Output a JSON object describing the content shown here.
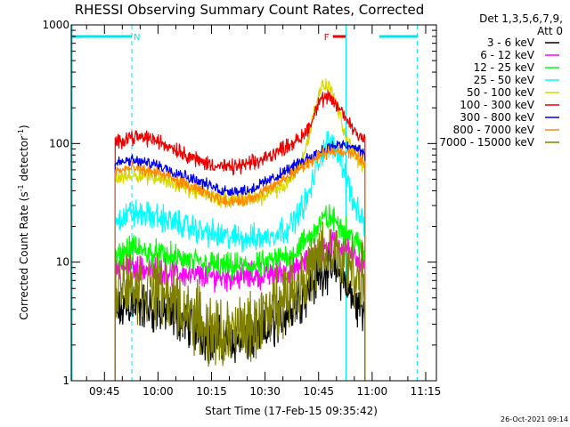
{
  "chart_data": {
    "type": "line",
    "title": "RHESSI Observing Summary Count Rates, Corrected",
    "xlabel": "Start Time (17-Feb-15 09:35:42)",
    "ylabel_main": "Corrected Count Rate (s",
    "ylabel_sup1": "-1",
    "ylabel_mid": " detector",
    "ylabel_sup2": "-1",
    "ylabel_end": ")",
    "y_scale": "log",
    "ylim": [
      1,
      1000
    ],
    "xlim": [
      "09:35:42",
      "11:18:00"
    ],
    "x_ticks": [
      "09:45",
      "10:00",
      "10:15",
      "10:30",
      "10:45",
      "11:00",
      "11:15"
    ],
    "y_ticks": [
      {
        "value": 1,
        "label": "1"
      },
      {
        "value": 10,
        "label": "10"
      },
      {
        "value": 100,
        "label": "100"
      },
      {
        "value": 1000,
        "label": "1000"
      }
    ],
    "legend_header": [
      "Det 1,3,5,6,7,9,",
      "Att 0"
    ],
    "legend_position": "right",
    "timestamp": "26-Oct-2021 09:14",
    "flags": [
      {
        "label": "N",
        "color": "#00e5ee",
        "segments": [
          [
            "09:35:42",
            "09:52:40"
          ],
          [
            "11:02:00",
            "11:12:40"
          ]
        ]
      },
      {
        "label": "F",
        "color": "#ee0000",
        "segments": [
          [
            "10:49:00",
            "10:52:40"
          ]
        ]
      }
    ],
    "night_markers": [
      "09:52:40",
      "11:12:40"
    ],
    "day_marker": "10:52:40",
    "series": [
      {
        "name": "3 - 6 keV",
        "color": "#000000",
        "noise": 0.12,
        "points": [
          [
            "09:48:00",
            3.5
          ],
          [
            "09:52:00",
            4.5
          ],
          [
            "09:58:00",
            4.0
          ],
          [
            "10:05:00",
            3.5
          ],
          [
            "10:15:00",
            2.2
          ],
          [
            "10:25:00",
            2.2
          ],
          [
            "10:30:00",
            2.5
          ],
          [
            "10:35:00",
            3.5
          ],
          [
            "10:40:00",
            5.0
          ],
          [
            "10:44:00",
            7.0
          ],
          [
            "10:47:00",
            9.0
          ],
          [
            "10:50:00",
            8.5
          ],
          [
            "10:53:00",
            6.5
          ],
          [
            "10:55:00",
            4.5
          ],
          [
            "10:58:00",
            4.0
          ]
        ]
      },
      {
        "name": "6 - 12 keV",
        "color": "#ff00ff",
        "noise": 0.07,
        "points": [
          [
            "09:48:00",
            8.5
          ],
          [
            "09:52:00",
            9.0
          ],
          [
            "10:00:00",
            8.5
          ],
          [
            "10:10:00",
            7.8
          ],
          [
            "10:20:00",
            7.5
          ],
          [
            "10:30:00",
            7.8
          ],
          [
            "10:38:00",
            8.5
          ],
          [
            "10:42:00",
            10.0
          ],
          [
            "10:46:00",
            13.0
          ],
          [
            "10:49:00",
            15.0
          ],
          [
            "10:52:00",
            14.0
          ],
          [
            "10:55:00",
            11.0
          ],
          [
            "10:58:00",
            9.5
          ]
        ]
      },
      {
        "name": "12 - 25 keV",
        "color": "#00ff00",
        "noise": 0.07,
        "points": [
          [
            "09:48:00",
            10.5
          ],
          [
            "09:52:00",
            13.0
          ],
          [
            "09:58:00",
            12.0
          ],
          [
            "10:10:00",
            10.0
          ],
          [
            "10:20:00",
            9.0
          ],
          [
            "10:30:00",
            9.5
          ],
          [
            "10:38:00",
            12.0
          ],
          [
            "10:43:00",
            17.0
          ],
          [
            "10:47:00",
            24.0
          ],
          [
            "10:50:00",
            22.0
          ],
          [
            "10:53:00",
            18.0
          ],
          [
            "10:56:00",
            14.0
          ],
          [
            "10:58:00",
            12.0
          ]
        ]
      },
      {
        "name": "25 - 50 keV",
        "color": "#00ffff",
        "noise": 0.07,
        "points": [
          [
            "09:48:00",
            22.0
          ],
          [
            "09:52:00",
            26.0
          ],
          [
            "10:00:00",
            24.0
          ],
          [
            "10:10:00",
            19.0
          ],
          [
            "10:20:00",
            16.0
          ],
          [
            "10:30:00",
            16.0
          ],
          [
            "10:37:00",
            20.0
          ],
          [
            "10:42:00",
            35.0
          ],
          [
            "10:45:00",
            70.0
          ],
          [
            "10:47:00",
            100.0
          ],
          [
            "10:50:00",
            95.0
          ],
          [
            "10:53:00",
            50.0
          ],
          [
            "10:55:00",
            30.0
          ],
          [
            "10:58:00",
            20.0
          ]
        ]
      },
      {
        "name": "50 - 100 keV",
        "color": "#d8d800",
        "noise": 0.04,
        "points": [
          [
            "09:48:00",
            50.0
          ],
          [
            "09:52:00",
            55.0
          ],
          [
            "10:00:00",
            52.0
          ],
          [
            "10:10:00",
            40.0
          ],
          [
            "10:20:00",
            33.0
          ],
          [
            "10:30:00",
            36.0
          ],
          [
            "10:36:00",
            45.0
          ],
          [
            "10:41:00",
            80.0
          ],
          [
            "10:44:00",
            200.0
          ],
          [
            "10:46:00",
            320.0
          ],
          [
            "10:48:00",
            300.0
          ],
          [
            "10:50:00",
            220.0
          ],
          [
            "10:52:00",
            130.0
          ],
          [
            "10:55:00",
            80.0
          ],
          [
            "10:58:00",
            60.0
          ]
        ]
      },
      {
        "name": "100 - 300 keV",
        "color": "#ee0000",
        "noise": 0.04,
        "points": [
          [
            "09:48:00",
            100.0
          ],
          [
            "09:52:00",
            115.0
          ],
          [
            "09:58:00",
            110.0
          ],
          [
            "10:05:00",
            90.0
          ],
          [
            "10:12:00",
            70.0
          ],
          [
            "10:20:00",
            62.0
          ],
          [
            "10:28:00",
            70.0
          ],
          [
            "10:36:00",
            95.0
          ],
          [
            "10:40:00",
            110.0
          ],
          [
            "10:43:00",
            150.0
          ],
          [
            "10:45:00",
            230.0
          ],
          [
            "10:48:00",
            240.0
          ],
          [
            "10:50:00",
            210.0
          ],
          [
            "10:53:00",
            160.0
          ],
          [
            "10:55:00",
            130.0
          ],
          [
            "10:58:00",
            110.0
          ]
        ]
      },
      {
        "name": "300 - 800 keV",
        "color": "#0000ee",
        "noise": 0.03,
        "points": [
          [
            "09:48:00",
            68.0
          ],
          [
            "09:52:00",
            72.0
          ],
          [
            "10:00:00",
            66.0
          ],
          [
            "10:10:00",
            50.0
          ],
          [
            "10:18:00",
            40.0
          ],
          [
            "10:25:00",
            40.0
          ],
          [
            "10:33:00",
            52.0
          ],
          [
            "10:40:00",
            70.0
          ],
          [
            "10:45:00",
            85.0
          ],
          [
            "10:50:00",
            97.0
          ],
          [
            "10:53:00",
            95.0
          ],
          [
            "10:56:00",
            90.0
          ],
          [
            "10:58:00",
            80.0
          ]
        ]
      },
      {
        "name": "800 - 7000 keV",
        "color": "#ff8800",
        "noise": 0.03,
        "points": [
          [
            "09:48:00",
            58.0
          ],
          [
            "09:52:00",
            62.0
          ],
          [
            "10:00:00",
            57.0
          ],
          [
            "10:10:00",
            42.0
          ],
          [
            "10:18:00",
            33.0
          ],
          [
            "10:25:00",
            33.0
          ],
          [
            "10:33:00",
            45.0
          ],
          [
            "10:40:00",
            62.0
          ],
          [
            "10:45:00",
            78.0
          ],
          [
            "10:50:00",
            88.0
          ],
          [
            "10:53:00",
            85.0
          ],
          [
            "10:56:00",
            78.0
          ],
          [
            "10:58:00",
            68.0
          ]
        ]
      },
      {
        "name": "7000 - 15000 keV",
        "color": "#808000",
        "noise": 0.18,
        "points": [
          [
            "09:48:00",
            7.0
          ],
          [
            "09:52:00",
            6.5
          ],
          [
            "09:58:00",
            6.0
          ],
          [
            "10:05:00",
            4.5
          ],
          [
            "10:10:00",
            3.5
          ],
          [
            "10:15:00",
            2.5
          ],
          [
            "10:20:00",
            2.5
          ],
          [
            "10:27:00",
            2.8
          ],
          [
            "10:33:00",
            4.5
          ],
          [
            "10:38:00",
            6.0
          ],
          [
            "10:42:00",
            8.0
          ],
          [
            "10:46:00",
            11.0
          ],
          [
            "10:50:00",
            11.5
          ],
          [
            "10:53:00",
            10.0
          ],
          [
            "10:55:00",
            8.0
          ],
          [
            "10:58:00",
            7.0
          ]
        ]
      }
    ]
  }
}
